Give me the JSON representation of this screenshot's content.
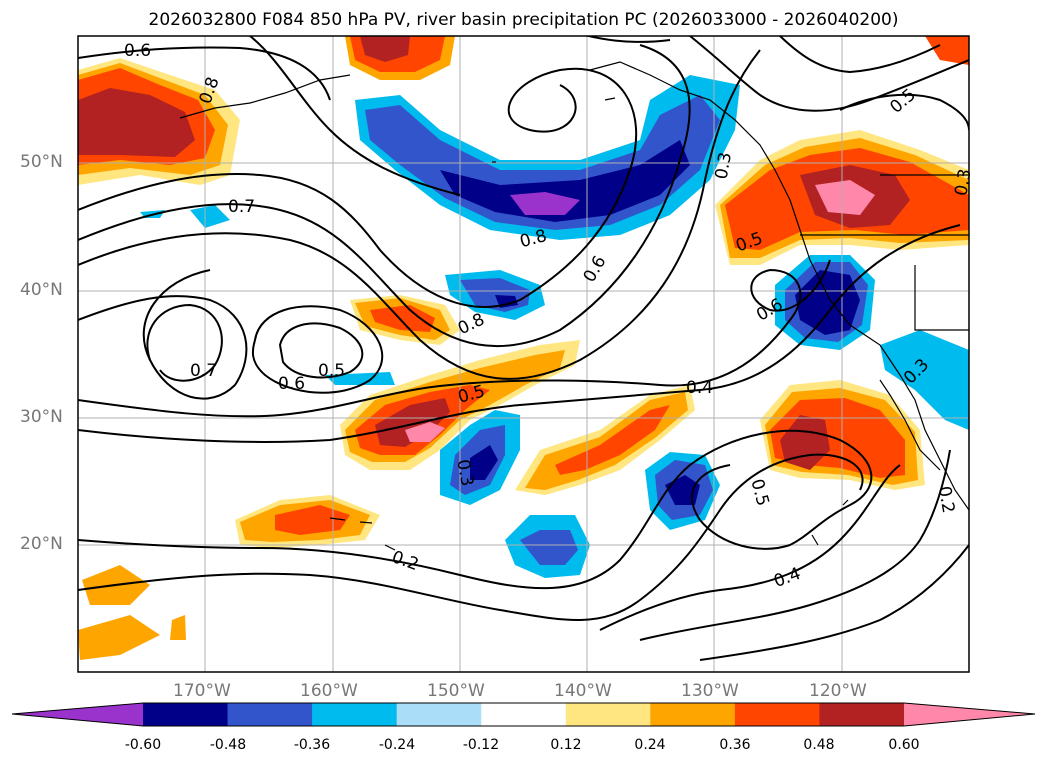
{
  "title": "2026032800 F084 850 hPa PV, river basin precipitation PC (2026033000 - 2026040200)",
  "lat_labels": [
    "50°N",
    "40°N",
    "30°N",
    "20°N"
  ],
  "lon_labels": [
    "170°W",
    "160°W",
    "150°W",
    "140°W",
    "130°W",
    "120°W"
  ],
  "colorbar": {
    "ticks": [
      "-0.60",
      "-0.48",
      "-0.36",
      "-0.24",
      "-0.12",
      "0.12",
      "0.24",
      "0.36",
      "0.48",
      "0.60"
    ],
    "colors": [
      "#9933cc",
      "#000088",
      "#3355cc",
      "#00bbee",
      "#aadef8",
      "#ffffff",
      "#ffe680",
      "#ffa500",
      "#ff4500",
      "#b22222",
      "#ff88aa"
    ]
  },
  "contour_labels": [
    "0.6",
    "0.8",
    "0.7",
    "0.7",
    "0.6",
    "0.5",
    "0.8",
    "0.8",
    "0.6",
    "0.5",
    "0.4",
    "0.3",
    "0.5",
    "0.6",
    "0.3",
    "0.5",
    "0.4",
    "0.2",
    "0.2",
    "0.5",
    "0.3",
    "0.3"
  ]
}
